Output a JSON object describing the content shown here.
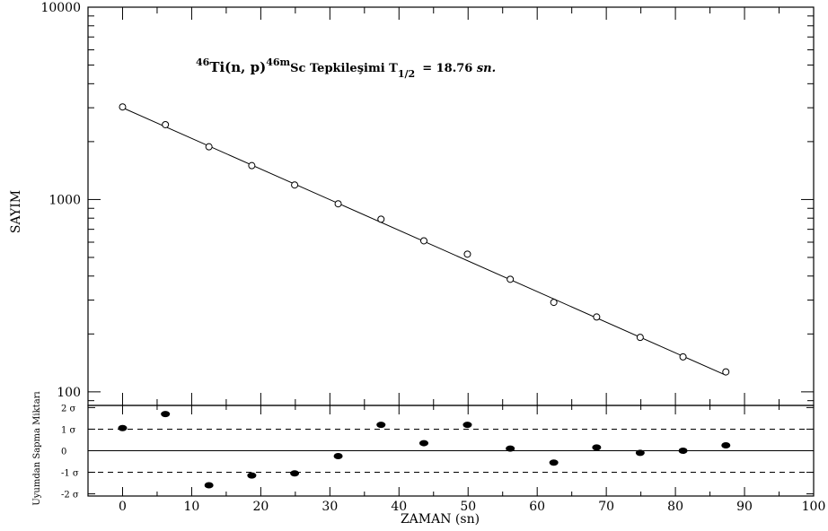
{
  "chart_data": [
    {
      "type": "scatter",
      "panel": "decay",
      "title_parts": {
        "sup1": "46",
        "main1": "Ti(n, p)",
        "sup2": "46m",
        "main2": "Sc Tepkileşimi T",
        "sub": "1/2",
        "main3": "= 18.76 ",
        "unit": "sn."
      },
      "ylabel": "SAYIM",
      "xlim": [
        -5,
        100
      ],
      "ylim": [
        85,
        10000
      ],
      "yscale": "log",
      "ytick_labels": [
        "100",
        "1000",
        "10000"
      ],
      "grid": false,
      "series": [
        {
          "marker": "open-circle",
          "x": [
            0,
            6.2,
            12.5,
            18.7,
            24.9,
            31.2,
            37.4,
            43.6,
            49.9,
            56.1,
            62.4,
            68.6,
            74.9,
            81.1,
            87.3
          ],
          "y": [
            3030,
            2450,
            1880,
            1500,
            1190,
            950,
            790,
            610,
            520,
            385,
            292,
            245,
            192,
            152,
            127
          ]
        }
      ],
      "fit_line": {
        "x": [
          0,
          87.3
        ],
        "y": [
          3000,
          122
        ]
      }
    },
    {
      "type": "scatter",
      "panel": "residuals",
      "ylabel": "Uyumdan Sapma Miktarı",
      "xlabel": "ZAMAN (sn)",
      "xlim": [
        -5,
        100
      ],
      "ylim": [
        -2.1,
        2.1
      ],
      "xtick_labels": [
        "0",
        "10",
        "20",
        "30",
        "40",
        "50",
        "60",
        "70",
        "80",
        "90",
        "100"
      ],
      "ytick_labels": [
        "2 σ",
        "1 σ",
        "0",
        "-1 σ",
        "-2 σ"
      ],
      "reference_lines": {
        "dashed": [
          1,
          -1
        ],
        "solid": [
          0
        ]
      },
      "series": [
        {
          "marker": "filled-circle",
          "x": [
            0,
            6.2,
            12.5,
            18.7,
            24.9,
            31.2,
            37.4,
            43.6,
            49.9,
            56.1,
            62.4,
            68.6,
            74.9,
            81.1,
            87.3
          ],
          "y": [
            1.05,
            1.7,
            -1.6,
            -1.15,
            -1.05,
            -0.25,
            1.2,
            0.35,
            1.2,
            0.1,
            -0.55,
            0.15,
            -0.1,
            0.0,
            0.25
          ]
        }
      ]
    }
  ]
}
